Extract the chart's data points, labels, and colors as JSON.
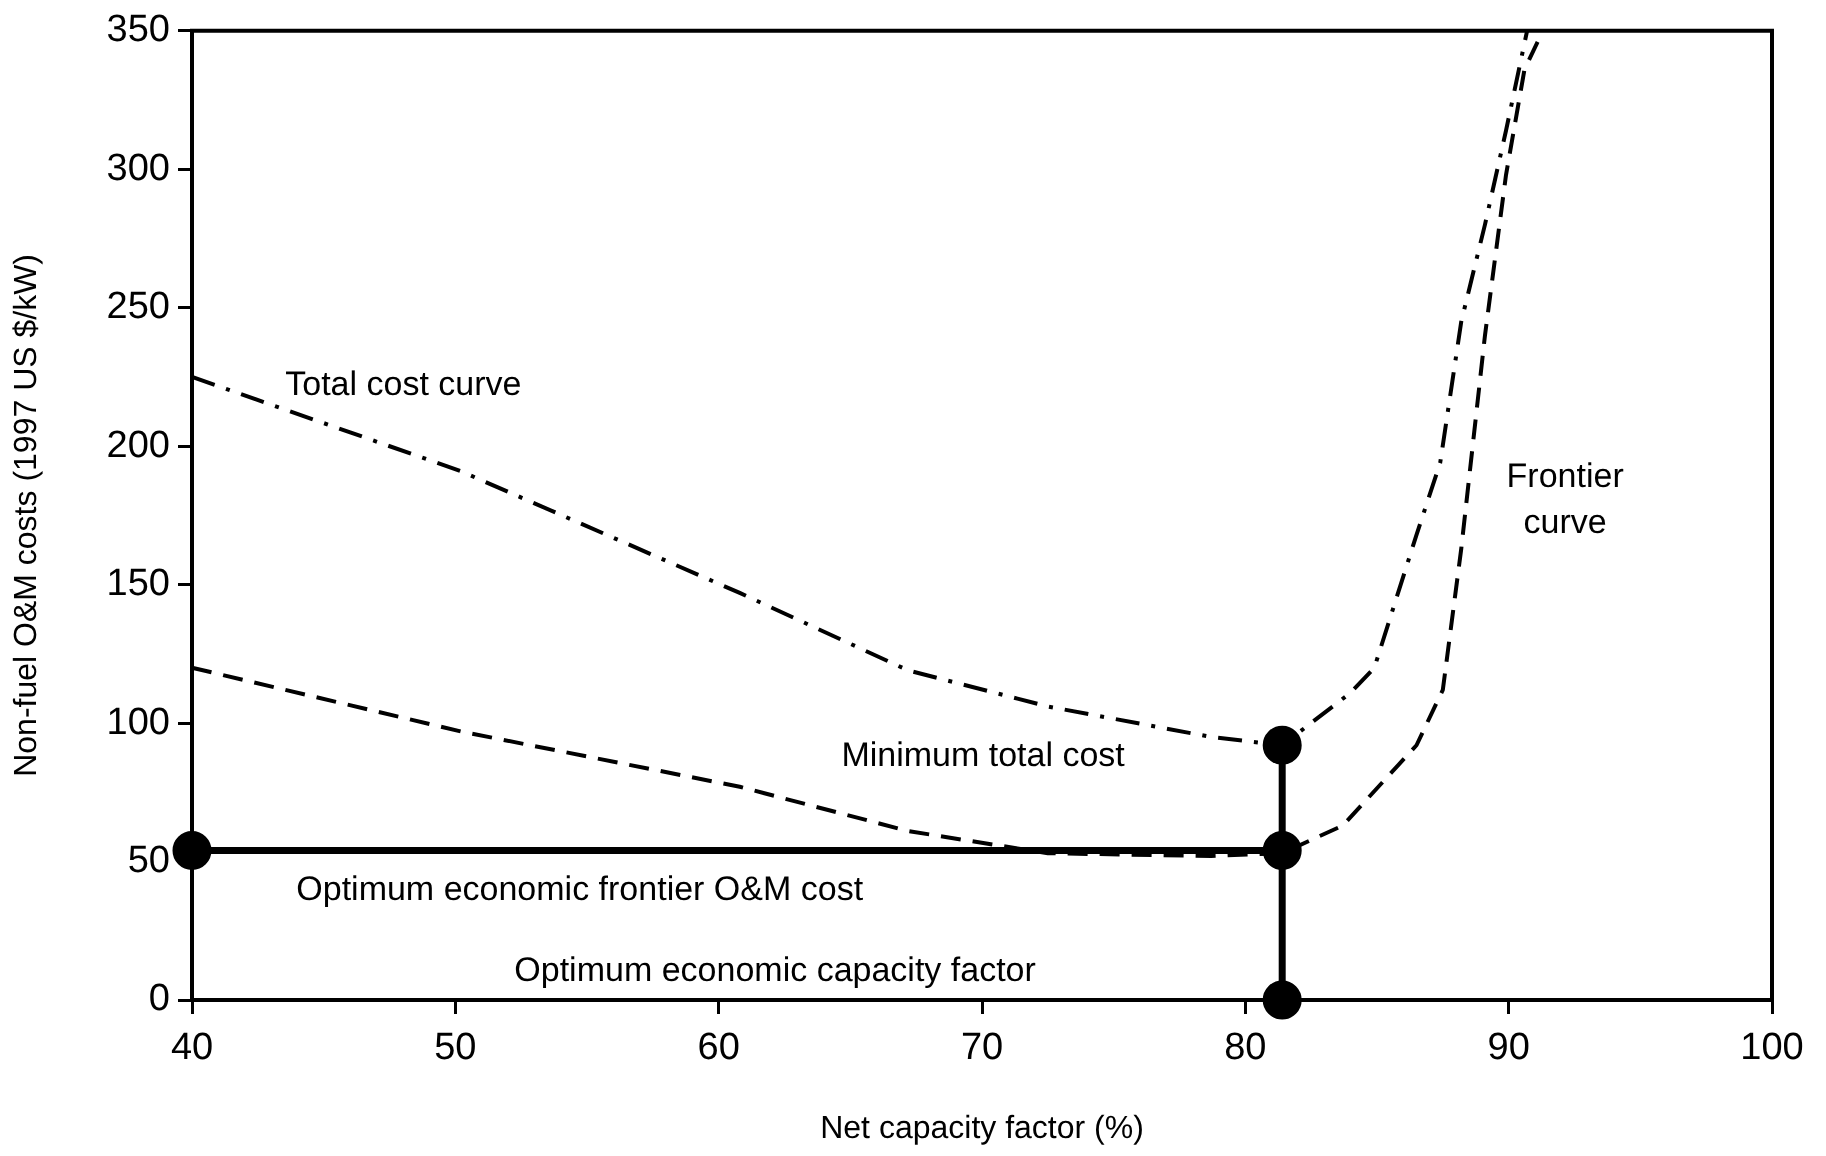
{
  "chart_data": {
    "type": "line",
    "xlabel": "Net capacity factor (%)",
    "ylabel": "Non-fuel O&M costs (1997 US $/kW)",
    "xlim": [
      40,
      100
    ],
    "xticks": [
      40,
      50,
      60,
      70,
      80,
      90,
      100
    ],
    "ylim": [
      0,
      350
    ],
    "yticks": [
      0,
      50,
      100,
      150,
      200,
      250,
      300,
      350
    ],
    "grid": false,
    "legend": false,
    "series": [
      {
        "color": "#000000",
        "line_style": "dashdot",
        "marker": "none",
        "x": [
          40,
          50.2,
          60.8,
          67.2,
          72.5,
          78.7,
          81.4,
          84.0,
          84.9,
          86.5,
          87.4,
          88.2,
          89.1,
          89.9,
          90.7
        ],
        "values": [
          225,
          191,
          147,
          119,
          106,
          95,
          92,
          111,
          120,
          168,
          194,
          245,
          280,
          314,
          350
        ]
      },
      {
        "color": "#000000",
        "line_style": "dashed",
        "marker": "none",
        "x": [
          40,
          50.2,
          60.8,
          67.2,
          72.5,
          78.7,
          81.4,
          83.7,
          86.5,
          87.5,
          88.2,
          89.1,
          89.9,
          90.6,
          91.3
        ],
        "values": [
          120,
          97,
          77,
          61,
          53,
          52,
          53,
          63,
          92,
          112,
          163,
          240,
          298,
          336,
          350
        ]
      },
      {
        "color": "#000000",
        "line_style": "solid",
        "marker": "circle",
        "x": [
          40,
          81.4
        ],
        "values": [
          54,
          54
        ]
      },
      {
        "color": "#000000",
        "line_style": "solid",
        "marker": "circle",
        "x": [
          81.4,
          81.4
        ],
        "values": [
          0,
          92
        ]
      }
    ],
    "annotations": [
      "Total cost curve",
      "Minimum total cost",
      "Optimum economic frontier O&M cost",
      "Optimum economic capacity factor",
      "Frontier\ncurve"
    ]
  }
}
